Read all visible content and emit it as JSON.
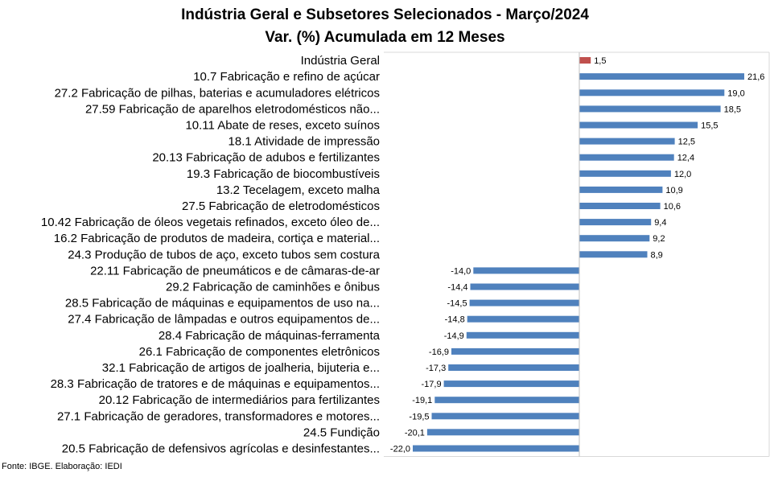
{
  "chart_data": {
    "type": "bar",
    "orientation": "horizontal",
    "title": "Indústria Geral e Subsetores Selecionados - Março/2024",
    "subtitle": "Var. (%) Acumulada em 12 Meses",
    "source": "Fonte: IBGE. Elaboração: IEDI",
    "xlim": [
      -22,
      21.6
    ],
    "grid": false,
    "legend": "none",
    "colors": {
      "highlight": "#c0504d",
      "default": "#4f81bd"
    },
    "categories": [
      "Indústria Geral",
      "10.7 Fabricação e refino de açúcar",
      "27.2 Fabricação de pilhas, baterias e acumuladores elétricos",
      "27.59 Fabricação de aparelhos eletrodomésticos não...",
      "10.11 Abate de reses, exceto suínos",
      "18.1 Atividade de impressão",
      "20.13 Fabricação de adubos e fertilizantes",
      "19.3 Fabricação de biocombustíveis",
      "13.2 Tecelagem, exceto malha",
      "27.5 Fabricação de eletrodomésticos",
      "10.42 Fabricação de óleos vegetais refinados, exceto óleo de...",
      "16.2 Fabricação de produtos de madeira, cortiça e material...",
      "24.3 Produção de tubos de aço, exceto tubos sem costura",
      "22.11 Fabricação de pneumáticos e de câmaras-de-ar",
      "29.2 Fabricação de caminhões e ônibus",
      "28.5 Fabricação de máquinas e equipamentos de uso na...",
      "27.4 Fabricação de lâmpadas e outros equipamentos de...",
      "28.4 Fabricação de máquinas-ferramenta",
      "26.1 Fabricação de componentes eletrônicos",
      "32.1 Fabricação de artigos de joalheria, bijuteria e...",
      "28.3 Fabricação de tratores e de máquinas e equipamentos...",
      "20.12 Fabricação de intermediários para fertilizantes",
      "27.1 Fabricação de geradores, transformadores e motores...",
      "24.5 Fundição",
      "20.5 Fabricação de defensivos agrícolas e desinfestantes..."
    ],
    "values": [
      1.5,
      21.6,
      19.0,
      18.5,
      15.5,
      12.5,
      12.4,
      12.0,
      10.9,
      10.6,
      9.4,
      9.2,
      8.9,
      -14.0,
      -14.4,
      -14.5,
      -14.8,
      -14.9,
      -16.9,
      -17.3,
      -17.9,
      -19.1,
      -19.5,
      -20.1,
      -22.0
    ],
    "value_labels": [
      "1,5",
      "21,6",
      "19,0",
      "18,5",
      "15,5",
      "12,5",
      "12,4",
      "12,0",
      "10,9",
      "10,6",
      "9,4",
      "9,2",
      "8,9",
      "-14,0",
      "-14,4",
      "-14,5",
      "-14,8",
      "-14,9",
      "-16,9",
      "-17,3",
      "-17,9",
      "-19,1",
      "-19,5",
      "-20,1",
      "-22,0"
    ]
  }
}
